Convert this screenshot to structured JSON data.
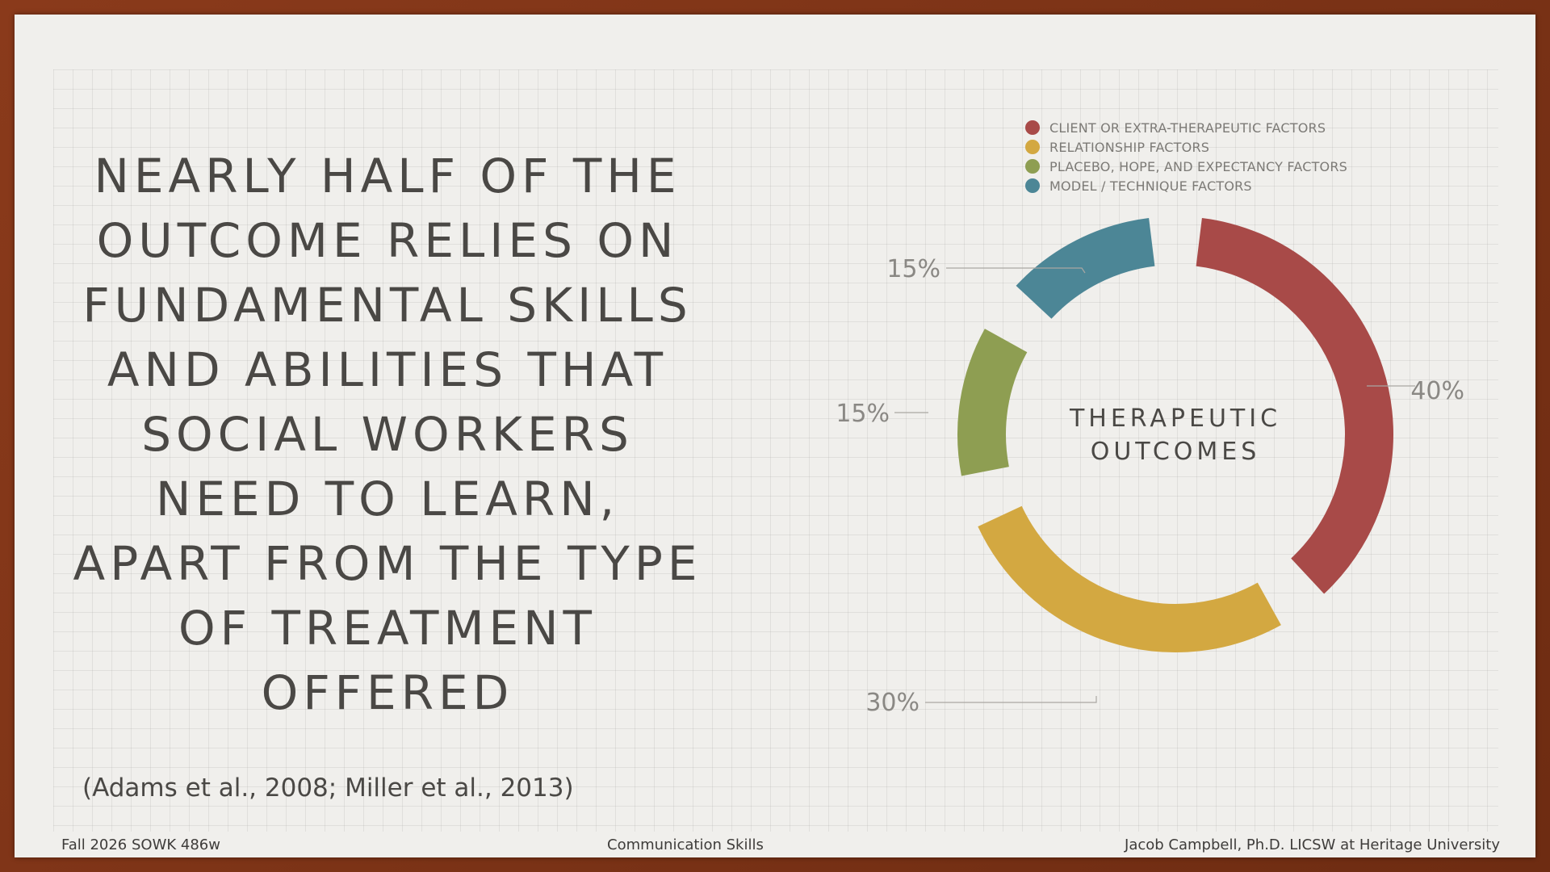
{
  "headline": {
    "lines": [
      "NEARLY HALF OF THE",
      "OUTCOME RELIES ON",
      "FUNDAMENTAL SKILLS",
      "AND ABILITIES THAT",
      "SOCIAL WORKERS",
      "NEED TO LEARN,",
      "APART FROM THE TYPE",
      "OF TREATMENT",
      "OFFERED"
    ]
  },
  "citation": "(Adams et al., 2008; Miller et al., 2013)",
  "footer": {
    "left": "Fall 2026 SOWK 486w",
    "center": "Communication Skills",
    "right": "Jacob Campbell, Ph.D. LICSW at Heritage University"
  },
  "chart_data": {
    "type": "pie",
    "variant": "donut",
    "center_label_lines": [
      "THERAPEUTIC",
      "OUTCOMES"
    ],
    "legend_position": "top-right",
    "series": [
      {
        "name": "CLIENT OR EXTRA-THERAPEUTIC FACTORS",
        "value": 40,
        "label": "40%",
        "color": "#a84a48"
      },
      {
        "name": "RELATIONSHIP FACTORS",
        "value": 30,
        "label": "30%",
        "color": "#d3a841"
      },
      {
        "name": "PLACEBO, HOPE, AND EXPECTANCY FACTORS",
        "value": 15,
        "label": "15%",
        "color": "#8e9e52"
      },
      {
        "name": "MODEL / TECHNIQUE FACTORS",
        "value": 15,
        "label": "15%",
        "color": "#4c8696"
      }
    ]
  }
}
